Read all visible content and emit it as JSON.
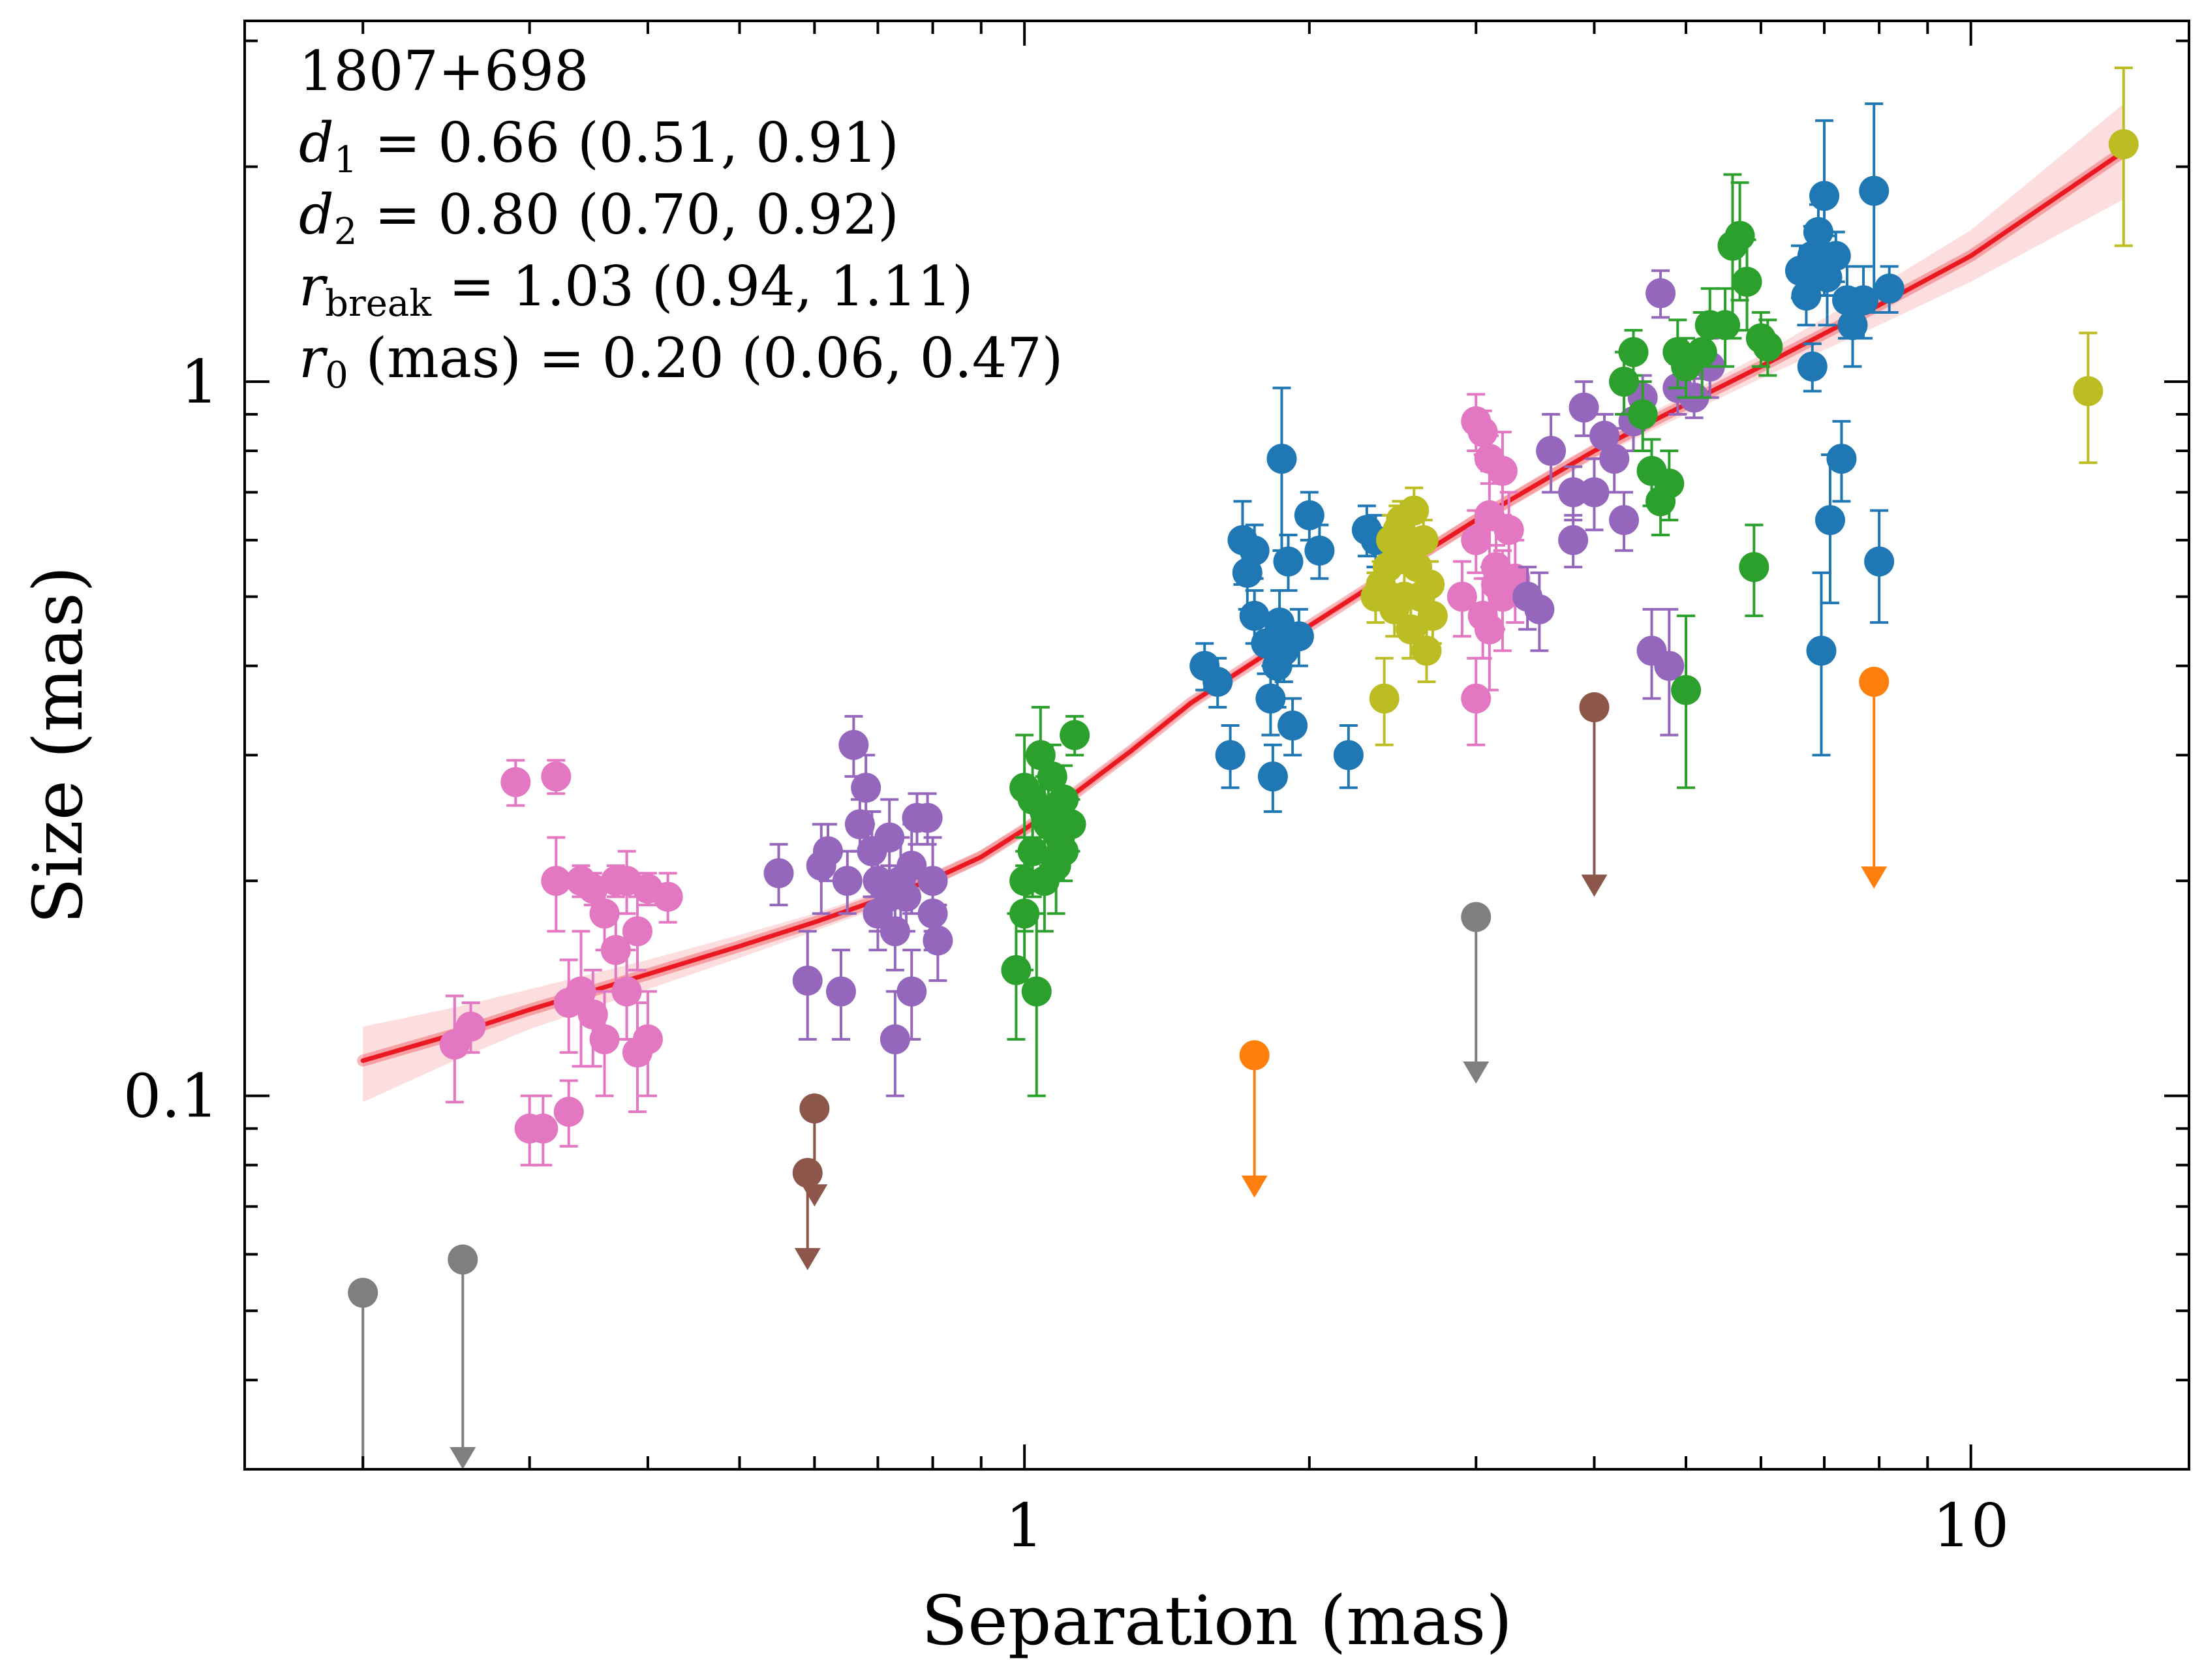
{
  "chart_data": {
    "type": "scatter",
    "title": "",
    "xlabel": "Separation (mas)",
    "ylabel": "Size (mas)",
    "xscale": "log",
    "yscale": "log",
    "xlim": [
      0.15,
      17
    ],
    "ylim": [
      0.03,
      3.2
    ],
    "xticks": [
      {
        "value": 1,
        "label": "1"
      },
      {
        "value": 10,
        "label": "10"
      }
    ],
    "yticks": [
      {
        "value": 0.1,
        "label": "0.1"
      },
      {
        "value": 1,
        "label": "1"
      }
    ],
    "grid": false,
    "legend": "none",
    "annotations": {
      "source": "1807+698",
      "d1": {
        "sym": "d",
        "sub": "1",
        "text": " = 0.66 (0.51, 0.91)"
      },
      "d2": {
        "sym": "d",
        "sub": "2",
        "text": " = 0.80 (0.70, 0.92)"
      },
      "rbreak": {
        "sym": "r",
        "sub": "break",
        "text": " = 1.03 (0.94, 1.11)"
      },
      "r0": {
        "sym": "r",
        "sub": "0",
        "text": " (mas) = 0.20 (0.06, 0.47)"
      }
    },
    "fit": {
      "model": "broken power law",
      "d1": 0.66,
      "d2": 0.8,
      "r_break": 1.03,
      "r0": 0.2,
      "curve_x": [
        0.2,
        0.25,
        0.3,
        0.4,
        0.5,
        0.6,
        0.7,
        0.8,
        0.9,
        1.0,
        1.1,
        1.3,
        1.5,
        2.0,
        2.5,
        3.0,
        4.0,
        5.0,
        6.0,
        8.0,
        10.0,
        14.5
      ],
      "curve_y": [
        0.112,
        0.122,
        0.132,
        0.148,
        0.162,
        0.175,
        0.188,
        0.201,
        0.216,
        0.236,
        0.258,
        0.305,
        0.355,
        0.455,
        0.55,
        0.64,
        0.8,
        0.93,
        1.05,
        1.28,
        1.5,
        2.1
      ],
      "band_lower": [
        0.098,
        0.112,
        0.124,
        0.141,
        0.156,
        0.17,
        0.183,
        0.197,
        0.212,
        0.232,
        0.254,
        0.3,
        0.35,
        0.45,
        0.54,
        0.625,
        0.78,
        0.9,
        1.01,
        1.2,
        1.38,
        1.8
      ],
      "band_upper": [
        0.125,
        0.133,
        0.141,
        0.155,
        0.168,
        0.18,
        0.193,
        0.206,
        0.221,
        0.24,
        0.262,
        0.31,
        0.36,
        0.46,
        0.56,
        0.655,
        0.82,
        0.96,
        1.09,
        1.36,
        1.63,
        2.45
      ],
      "color": "#e8000b"
    },
    "series": [
      {
        "name": "pink",
        "color": "#e377c2",
        "points": [
          [
            0.25,
            0.118,
            0.02
          ],
          [
            0.26,
            0.125,
            0.01
          ],
          [
            0.29,
            0.275,
            0.02
          ],
          [
            0.3,
            0.09,
            0.01
          ],
          [
            0.31,
            0.09,
            0.01
          ],
          [
            0.32,
            0.28,
            0.015
          ],
          [
            0.32,
            0.2,
            0.03
          ],
          [
            0.33,
            0.135,
            0.02
          ],
          [
            0.33,
            0.095,
            0.01
          ],
          [
            0.34,
            0.2,
            0.01
          ],
          [
            0.34,
            0.14,
            0.03
          ],
          [
            0.35,
            0.13,
            0.02
          ],
          [
            0.35,
            0.195,
            0.01
          ],
          [
            0.36,
            0.18,
            0.02
          ],
          [
            0.36,
            0.12,
            0.02
          ],
          [
            0.37,
            0.16,
            0.02
          ],
          [
            0.37,
            0.2,
            0.01
          ],
          [
            0.38,
            0.14,
            0.02
          ],
          [
            0.38,
            0.2,
            0.02
          ],
          [
            0.39,
            0.17,
            0.02
          ],
          [
            0.39,
            0.115,
            0.02
          ],
          [
            0.4,
            0.195,
            0.01
          ],
          [
            0.4,
            0.12,
            0.02
          ],
          [
            0.42,
            0.19,
            0.015
          ],
          [
            3.0,
            0.88,
            0.08
          ],
          [
            3.05,
            0.85,
            0.06
          ],
          [
            3.1,
            0.78,
            0.06
          ],
          [
            3.2,
            0.75,
            0.1
          ],
          [
            3.1,
            0.65,
            0.1
          ],
          [
            3.0,
            0.6,
            0.06
          ],
          [
            3.15,
            0.55,
            0.07
          ],
          [
            3.2,
            0.5,
            0.08
          ],
          [
            3.05,
            0.47,
            0.06
          ],
          [
            3.1,
            0.45,
            0.08
          ],
          [
            3.0,
            0.36,
            0.05
          ],
          [
            3.25,
            0.62,
            0.08
          ],
          [
            3.3,
            0.53,
            0.07
          ],
          [
            3.15,
            0.52,
            0.07
          ],
          [
            2.9,
            0.5,
            0.06
          ]
        ]
      },
      {
        "name": "purple",
        "color": "#9467bd",
        "points": [
          [
            0.55,
            0.205,
            0.02
          ],
          [
            0.59,
            0.145,
            0.025
          ],
          [
            0.61,
            0.21,
            0.03
          ],
          [
            0.62,
            0.22,
            0.02
          ],
          [
            0.64,
            0.14,
            0.02
          ],
          [
            0.65,
            0.2,
            0.02
          ],
          [
            0.66,
            0.31,
            0.03
          ],
          [
            0.67,
            0.24,
            0.02
          ],
          [
            0.68,
            0.27,
            0.03
          ],
          [
            0.69,
            0.22,
            0.03
          ],
          [
            0.7,
            0.2,
            0.03
          ],
          [
            0.7,
            0.18,
            0.02
          ],
          [
            0.72,
            0.23,
            0.03
          ],
          [
            0.72,
            0.19,
            0.02
          ],
          [
            0.73,
            0.17,
            0.02
          ],
          [
            0.73,
            0.12,
            0.02
          ],
          [
            0.74,
            0.2,
            0.03
          ],
          [
            0.75,
            0.19,
            0.02
          ],
          [
            0.76,
            0.21,
            0.03
          ],
          [
            0.76,
            0.14,
            0.02
          ],
          [
            0.77,
            0.245,
            0.02
          ],
          [
            0.79,
            0.245,
            0.02
          ],
          [
            0.8,
            0.2,
            0.03
          ],
          [
            0.8,
            0.18,
            0.02
          ],
          [
            0.81,
            0.165,
            0.02
          ],
          [
            3.4,
            0.5,
            0.05
          ],
          [
            3.5,
            0.48,
            0.06
          ],
          [
            3.6,
            0.8,
            0.1
          ],
          [
            3.8,
            0.7,
            0.06
          ],
          [
            3.8,
            0.6,
            0.05
          ],
          [
            3.9,
            0.92,
            0.08
          ],
          [
            4.0,
            0.7,
            0.08
          ],
          [
            4.1,
            0.84,
            0.06
          ],
          [
            4.2,
            0.78,
            0.08
          ],
          [
            4.3,
            0.64,
            0.06
          ],
          [
            4.4,
            0.88,
            0.08
          ],
          [
            4.5,
            0.95,
            0.07
          ],
          [
            4.6,
            0.42,
            0.06
          ],
          [
            4.7,
            1.33,
            0.1
          ],
          [
            4.8,
            0.4,
            0.08
          ],
          [
            4.9,
            0.98,
            0.08
          ],
          [
            5.1,
            0.95,
            0.06
          ],
          [
            5.3,
            1.05,
            0.1
          ]
        ]
      },
      {
        "name": "green",
        "color": "#2ca02c",
        "points": [
          [
            0.98,
            0.15,
            0.03
          ],
          [
            1.0,
            0.27,
            0.05
          ],
          [
            1.0,
            0.2,
            0.03
          ],
          [
            1.0,
            0.18,
            0.03
          ],
          [
            1.02,
            0.26,
            0.04
          ],
          [
            1.02,
            0.22,
            0.03
          ],
          [
            1.03,
            0.14,
            0.04
          ],
          [
            1.04,
            0.3,
            0.05
          ],
          [
            1.05,
            0.25,
            0.03
          ],
          [
            1.05,
            0.2,
            0.03
          ],
          [
            1.06,
            0.24,
            0.03
          ],
          [
            1.07,
            0.28,
            0.03
          ],
          [
            1.08,
            0.21,
            0.03
          ],
          [
            1.09,
            0.23,
            0.02
          ],
          [
            1.1,
            0.26,
            0.03
          ],
          [
            1.1,
            0.22,
            0.02
          ],
          [
            1.12,
            0.24,
            0.02
          ],
          [
            1.13,
            0.32,
            0.02
          ],
          [
            4.3,
            1.0,
            0.1
          ],
          [
            4.4,
            1.1,
            0.08
          ],
          [
            4.5,
            0.9,
            0.1
          ],
          [
            4.6,
            0.75,
            0.08
          ],
          [
            4.7,
            0.68,
            0.07
          ],
          [
            4.8,
            0.72,
            0.08
          ],
          [
            4.9,
            1.1,
            0.12
          ],
          [
            5.0,
            0.37,
            0.1
          ],
          [
            5.0,
            1.05,
            0.1
          ],
          [
            5.2,
            1.1,
            0.15
          ],
          [
            5.3,
            1.2,
            0.15
          ],
          [
            5.5,
            1.2,
            0.15
          ],
          [
            5.6,
            1.55,
            0.4
          ],
          [
            5.7,
            1.6,
            0.3
          ],
          [
            5.8,
            1.38,
            0.2
          ],
          [
            5.9,
            0.55,
            0.08
          ],
          [
            6.0,
            1.15,
            0.1
          ],
          [
            6.1,
            1.12,
            0.1
          ]
        ]
      },
      {
        "name": "blue",
        "color": "#1f77b4",
        "points": [
          [
            1.55,
            0.4,
            0.03
          ],
          [
            1.6,
            0.38,
            0.03
          ],
          [
            1.65,
            0.3,
            0.03
          ],
          [
            1.7,
            0.6,
            0.08
          ],
          [
            1.72,
            0.54,
            0.06
          ],
          [
            1.75,
            0.47,
            0.04
          ],
          [
            1.75,
            0.58,
            0.05
          ],
          [
            1.8,
            0.43,
            0.04
          ],
          [
            1.82,
            0.36,
            0.04
          ],
          [
            1.83,
            0.28,
            0.03
          ],
          [
            1.85,
            0.4,
            0.05
          ],
          [
            1.86,
            0.46,
            0.05
          ],
          [
            1.87,
            0.78,
            0.2
          ],
          [
            1.88,
            0.42,
            0.04
          ],
          [
            1.9,
            0.56,
            0.05
          ],
          [
            1.92,
            0.33,
            0.03
          ],
          [
            1.95,
            0.44,
            0.04
          ],
          [
            2.0,
            0.65,
            0.05
          ],
          [
            2.05,
            0.58,
            0.05
          ],
          [
            2.2,
            0.3,
            0.03
          ],
          [
            2.3,
            0.62,
            0.05
          ],
          [
            2.35,
            0.6,
            0.05
          ],
          [
            6.6,
            1.43,
            0.12
          ],
          [
            6.7,
            1.32,
            0.12
          ],
          [
            6.8,
            1.5,
            0.15
          ],
          [
            6.8,
            1.05,
            0.08
          ],
          [
            6.9,
            1.62,
            0.15
          ],
          [
            6.95,
            0.42,
            0.12
          ],
          [
            7.0,
            1.82,
            0.5
          ],
          [
            7.05,
            1.4,
            0.2
          ],
          [
            7.1,
            0.64,
            0.15
          ],
          [
            7.2,
            1.5,
            0.12
          ],
          [
            7.3,
            0.78,
            0.1
          ],
          [
            7.4,
            1.3,
            0.15
          ],
          [
            7.5,
            1.2,
            0.15
          ],
          [
            7.7,
            1.3,
            0.15
          ],
          [
            7.9,
            1.85,
            0.6
          ],
          [
            8.0,
            0.56,
            0.1
          ],
          [
            8.2,
            1.35,
            0.1
          ]
        ]
      },
      {
        "name": "olive",
        "color": "#bcbd22",
        "points": [
          [
            2.35,
            0.5,
            0.04
          ],
          [
            2.38,
            0.52,
            0.04
          ],
          [
            2.4,
            0.36,
            0.05
          ],
          [
            2.42,
            0.55,
            0.04
          ],
          [
            2.44,
            0.6,
            0.05
          ],
          [
            2.46,
            0.48,
            0.04
          ],
          [
            2.48,
            0.62,
            0.05
          ],
          [
            2.5,
            0.64,
            0.04
          ],
          [
            2.52,
            0.5,
            0.04
          ],
          [
            2.54,
            0.58,
            0.04
          ],
          [
            2.56,
            0.45,
            0.04
          ],
          [
            2.58,
            0.66,
            0.05
          ],
          [
            2.6,
            0.55,
            0.04
          ],
          [
            2.62,
            0.5,
            0.05
          ],
          [
            2.64,
            0.6,
            0.04
          ],
          [
            2.66,
            0.42,
            0.04
          ],
          [
            2.68,
            0.52,
            0.04
          ],
          [
            2.7,
            0.47,
            0.04
          ],
          [
            13.3,
            0.97,
            0.2
          ],
          [
            14.5,
            2.15,
            0.6
          ]
        ]
      }
    ],
    "upper_limits": [
      {
        "color": "#7f7f7f",
        "x": 0.2,
        "y": 0.053,
        "y_end": 0.024
      },
      {
        "color": "#7f7f7f",
        "x": 0.255,
        "y": 0.059,
        "y_end": 0.03
      },
      {
        "color": "#7f7f7f",
        "x": 3.0,
        "y": 0.178,
        "y_end": 0.104
      },
      {
        "color": "#8c564b",
        "x": 0.6,
        "y": 0.096,
        "y_end": 0.07
      },
      {
        "color": "#8c564b",
        "x": 0.59,
        "y": 0.078,
        "y_end": 0.057
      },
      {
        "color": "#8c564b",
        "x": 4.0,
        "y": 0.35,
        "y_end": 0.19
      },
      {
        "color": "#ff7f0e",
        "x": 1.75,
        "y": 0.114,
        "y_end": 0.072
      },
      {
        "color": "#ff7f0e",
        "x": 7.9,
        "y": 0.38,
        "y_end": 0.195
      }
    ]
  }
}
